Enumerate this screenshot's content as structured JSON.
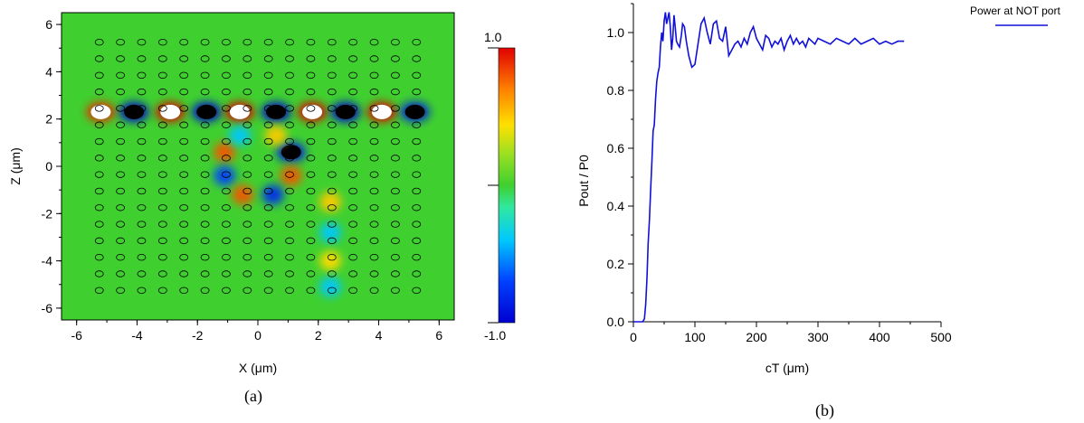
{
  "colors": {
    "line": "#1010d8",
    "field_background": "#3fd030"
  },
  "captions": {
    "a": "(a)",
    "b": "(b)"
  },
  "chart_data": [
    {
      "type": "heatmap",
      "xlabel": "X (μm)",
      "ylabel": "Z (μm)",
      "xlim": [
        -6.5,
        6.5
      ],
      "ylim": [
        -6.5,
        6.5
      ],
      "x_ticks": [
        -6,
        -4,
        -2,
        0,
        2,
        4,
        6
      ],
      "y_ticks": [
        -6,
        -4,
        -2,
        0,
        2,
        4,
        6
      ],
      "colorbar": {
        "min_label": "-1.0",
        "max_label": "1.0",
        "colormap": "jet"
      },
      "rod_lattice": {
        "x_start": -5.25,
        "x_step": 0.7,
        "x_count": 16,
        "z_start": -5.25,
        "z_step": 0.7,
        "z_count": 16
      },
      "field_spots": [
        {
          "x": -5.2,
          "z": 2.3,
          "v": 0.9
        },
        {
          "x": -4.1,
          "z": 2.3,
          "v": -1.0
        },
        {
          "x": -2.9,
          "z": 2.3,
          "v": 1.0
        },
        {
          "x": -1.7,
          "z": 2.3,
          "v": -1.0
        },
        {
          "x": -0.6,
          "z": 2.3,
          "v": 1.0
        },
        {
          "x": 0.6,
          "z": 2.3,
          "v": -1.0
        },
        {
          "x": 1.8,
          "z": 2.3,
          "v": 1.0
        },
        {
          "x": 2.9,
          "z": 2.3,
          "v": -1.0
        },
        {
          "x": 4.1,
          "z": 2.3,
          "v": 1.0
        },
        {
          "x": 5.2,
          "z": 2.3,
          "v": -0.9
        },
        {
          "x": -1.1,
          "z": 0.6,
          "v": 0.8
        },
        {
          "x": 1.1,
          "z": 0.6,
          "v": -0.9
        },
        {
          "x": -1.1,
          "z": -0.4,
          "v": -0.7
        },
        {
          "x": 1.1,
          "z": -0.4,
          "v": 0.8
        },
        {
          "x": -0.5,
          "z": -1.2,
          "v": 0.8
        },
        {
          "x": 0.5,
          "z": -1.2,
          "v": -0.8
        },
        {
          "x": 0.6,
          "z": 1.3,
          "v": 0.5
        },
        {
          "x": -0.6,
          "z": 1.3,
          "v": -0.4
        },
        {
          "x": 2.4,
          "z": -1.5,
          "v": 0.5
        },
        {
          "x": 2.4,
          "z": -2.8,
          "v": -0.4
        },
        {
          "x": 2.4,
          "z": -4.0,
          "v": 0.45
        },
        {
          "x": 2.4,
          "z": -5.1,
          "v": -0.4
        }
      ]
    },
    {
      "type": "line",
      "xlabel": "cT (μm)",
      "ylabel": "Pout / P0",
      "xlim": [
        0,
        500
      ],
      "ylim": [
        0,
        1.1
      ],
      "x_ticks": [
        0,
        100,
        200,
        300,
        400,
        500
      ],
      "y_ticks": [
        0.0,
        0.2,
        0.4,
        0.6,
        0.8,
        1.0
      ],
      "legend_position": "top-right",
      "series": [
        {
          "name": "Power at NOT port",
          "x": [
            0,
            15,
            18,
            20,
            22,
            24,
            26,
            28,
            30,
            32,
            34,
            36,
            38,
            40,
            42,
            44,
            46,
            48,
            50,
            52,
            54,
            56,
            58,
            60,
            62,
            64,
            66,
            68,
            70,
            72,
            75,
            78,
            80,
            83,
            86,
            90,
            95,
            100,
            105,
            110,
            115,
            120,
            125,
            130,
            135,
            140,
            145,
            150,
            155,
            160,
            165,
            170,
            175,
            180,
            185,
            190,
            195,
            200,
            205,
            210,
            215,
            220,
            225,
            230,
            235,
            240,
            245,
            250,
            255,
            260,
            265,
            270,
            275,
            280,
            285,
            290,
            295,
            300,
            310,
            320,
            330,
            340,
            350,
            360,
            370,
            380,
            390,
            400,
            410,
            420,
            430,
            440
          ],
          "y": [
            0.0,
            0.0,
            0.01,
            0.06,
            0.15,
            0.27,
            0.35,
            0.45,
            0.55,
            0.66,
            0.68,
            0.77,
            0.83,
            0.86,
            0.88,
            0.95,
            1.0,
            0.97,
            1.04,
            1.07,
            1.03,
            1.05,
            1.07,
            1.02,
            0.94,
            0.98,
            1.06,
            1.02,
            0.97,
            0.96,
            0.95,
            0.99,
            1.03,
            1.02,
            0.97,
            0.92,
            0.88,
            0.89,
            0.96,
            1.03,
            1.05,
            1.0,
            0.96,
            1.03,
            1.04,
            0.98,
            0.97,
            1.02,
            0.92,
            0.94,
            0.96,
            0.97,
            0.95,
            0.98,
            0.96,
            1.0,
            1.02,
            0.98,
            0.96,
            0.94,
            0.99,
            0.98,
            0.95,
            0.97,
            0.96,
            0.98,
            0.94,
            0.97,
            0.99,
            0.96,
            0.98,
            0.96,
            0.97,
            0.95,
            0.98,
            0.97,
            0.96,
            0.98,
            0.97,
            0.96,
            0.98,
            0.97,
            0.96,
            0.98,
            0.96,
            0.97,
            0.98,
            0.96,
            0.97,
            0.96,
            0.97,
            0.97
          ]
        }
      ]
    }
  ]
}
